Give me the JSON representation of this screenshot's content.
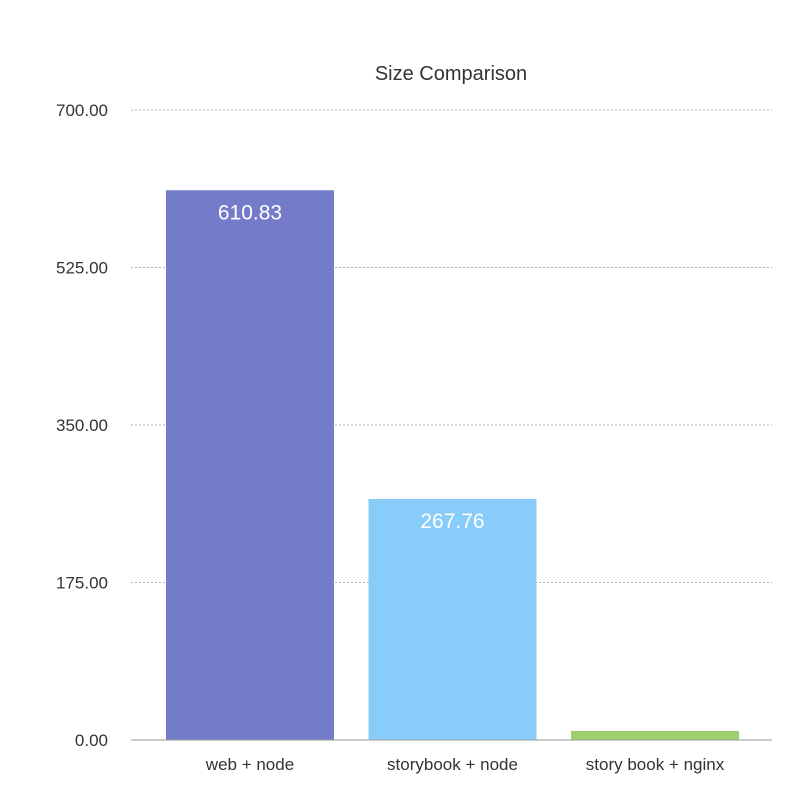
{
  "chart_data": {
    "type": "bar",
    "title": "Size Comparison",
    "xlabel": "",
    "ylabel": "",
    "categories": [
      "web + node",
      "storybook + node",
      "story book + nginx"
    ],
    "values": [
      610.83,
      267.76,
      10
    ],
    "data_labels": [
      "610.83",
      "267.76",
      ""
    ],
    "colors": [
      "#747bc9",
      "#88ccfa",
      "#9fcf6c"
    ],
    "ylim": [
      0,
      700
    ],
    "yticks": [
      {
        "value": 0,
        "label": "0.00"
      },
      {
        "value": 175,
        "label": "175.00"
      },
      {
        "value": 350,
        "label": "350.00"
      },
      {
        "value": 525,
        "label": "525.00"
      },
      {
        "value": 700,
        "label": "700.00"
      }
    ],
    "grid": true,
    "legend": "none"
  }
}
